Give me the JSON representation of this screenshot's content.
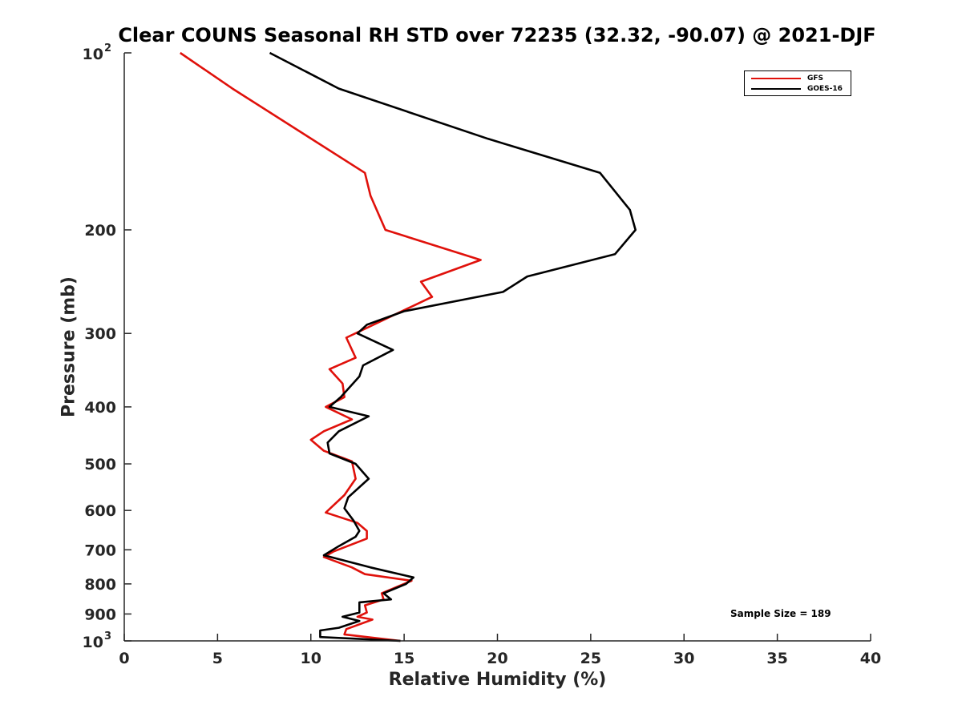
{
  "chart_data": {
    "type": "line",
    "title": "Clear COUNS Seasonal RH STD over 72235 (32.32, -90.07) @ 2021-DJF",
    "xlabel": "Relative Humidity (%)",
    "ylabel": "Pressure (mb)",
    "xlim": [
      0,
      40
    ],
    "ylim": [
      100,
      1000
    ],
    "yscale": "log",
    "y_reversed": true,
    "grid": false,
    "legend_position": "top-right",
    "x_ticks": [
      "0",
      "5",
      "10",
      "15",
      "20",
      "25",
      "30",
      "35",
      "40"
    ],
    "x_tick_values": [
      0,
      5,
      10,
      15,
      20,
      25,
      30,
      35,
      40
    ],
    "y_ticks": [
      {
        "value": 100,
        "base": "10",
        "exp": "2"
      },
      {
        "value": 200,
        "label": "200"
      },
      {
        "value": 300,
        "label": "300"
      },
      {
        "value": 400,
        "label": "400"
      },
      {
        "value": 500,
        "label": "500"
      },
      {
        "value": 600,
        "label": "600"
      },
      {
        "value": 700,
        "label": "700"
      },
      {
        "value": 800,
        "label": "800"
      },
      {
        "value": 900,
        "label": "900"
      },
      {
        "value": 1000,
        "base": "10",
        "exp": "3"
      }
    ],
    "annotation": "Sample Size = 189",
    "series": [
      {
        "name": "GFS",
        "color": "#e0110b",
        "points": [
          [
            3.0,
            100
          ],
          [
            5.8,
            115
          ],
          [
            12.9,
            160
          ],
          [
            13.2,
            175
          ],
          [
            14.0,
            200
          ],
          [
            19.1,
            225
          ],
          [
            15.9,
            245
          ],
          [
            16.5,
            260
          ],
          [
            11.9,
            305
          ],
          [
            12.4,
            330
          ],
          [
            11.0,
            345
          ],
          [
            11.7,
            365
          ],
          [
            11.8,
            385
          ],
          [
            10.8,
            400
          ],
          [
            12.2,
            420
          ],
          [
            10.7,
            440
          ],
          [
            10.0,
            455
          ],
          [
            10.7,
            475
          ],
          [
            12.2,
            495
          ],
          [
            12.4,
            530
          ],
          [
            11.8,
            565
          ],
          [
            10.8,
            605
          ],
          [
            12.5,
            630
          ],
          [
            13.0,
            650
          ],
          [
            13.0,
            670
          ],
          [
            11.2,
            705
          ],
          [
            10.7,
            720
          ],
          [
            12.2,
            750
          ],
          [
            12.9,
            770
          ],
          [
            15.4,
            790
          ],
          [
            13.8,
            830
          ],
          [
            13.9,
            850
          ],
          [
            12.9,
            870
          ],
          [
            13.0,
            895
          ],
          [
            12.5,
            910
          ],
          [
            13.3,
            920
          ],
          [
            11.9,
            955
          ],
          [
            11.8,
            975
          ],
          [
            14.8,
            1000
          ]
        ]
      },
      {
        "name": "GOES-16",
        "color": "#000000",
        "points": [
          [
            7.8,
            100
          ],
          [
            11.5,
            115
          ],
          [
            19.5,
            140
          ],
          [
            25.5,
            160
          ],
          [
            27.1,
            185
          ],
          [
            27.4,
            200
          ],
          [
            26.3,
            220
          ],
          [
            21.6,
            240
          ],
          [
            20.3,
            255
          ],
          [
            15.0,
            275
          ],
          [
            13.0,
            290
          ],
          [
            12.5,
            300
          ],
          [
            14.4,
            320
          ],
          [
            12.8,
            340
          ],
          [
            12.6,
            355
          ],
          [
            11.6,
            385
          ],
          [
            11.0,
            400
          ],
          [
            13.1,
            415
          ],
          [
            11.5,
            440
          ],
          [
            10.9,
            460
          ],
          [
            11.0,
            480
          ],
          [
            12.4,
            500
          ],
          [
            13.1,
            530
          ],
          [
            12.0,
            570
          ],
          [
            11.8,
            595
          ],
          [
            12.3,
            625
          ],
          [
            12.6,
            650
          ],
          [
            12.4,
            665
          ],
          [
            11.5,
            690
          ],
          [
            10.7,
            715
          ],
          [
            13.2,
            750
          ],
          [
            15.5,
            780
          ],
          [
            15.1,
            800
          ],
          [
            13.9,
            830
          ],
          [
            14.3,
            850
          ],
          [
            12.6,
            860
          ],
          [
            12.6,
            895
          ],
          [
            11.7,
            910
          ],
          [
            12.6,
            925
          ],
          [
            11.5,
            950
          ],
          [
            10.5,
            960
          ],
          [
            10.5,
            985
          ],
          [
            14.8,
            1000
          ]
        ]
      }
    ]
  }
}
